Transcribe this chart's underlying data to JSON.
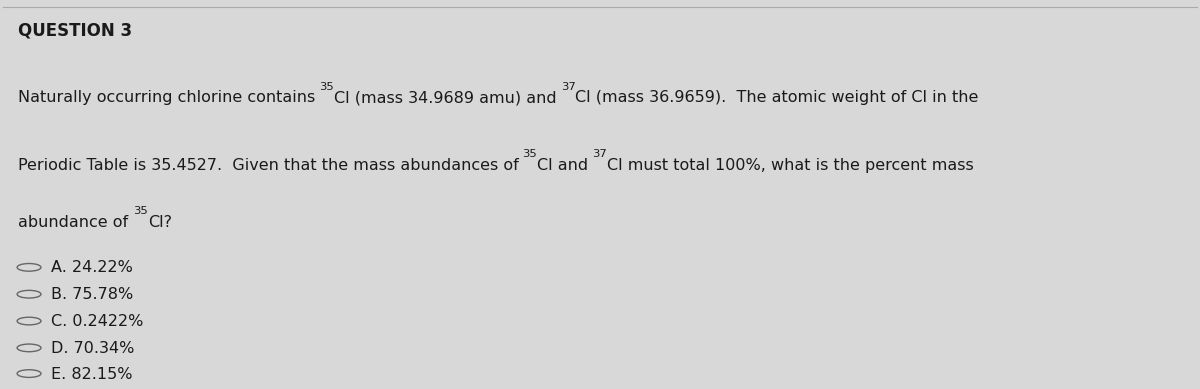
{
  "title": "QUESTION 3",
  "background_color": "#d8d8d8",
  "text_color": "#1a1a1a",
  "fig_width": 12.0,
  "fig_height": 3.89,
  "line1_plain": "Naturally occurring chlorine contains ",
  "line1_sup1": "35",
  "line1_mid1": "Cl (mass 34.9689 amu) and ",
  "line1_sup2": "37",
  "line1_mid2": "Cl (mass 36.9659).  The atomic weight of Cl in the",
  "line2_plain": "Periodic Table is 35.4527.  Given that the mass abundances of ",
  "line2_sup1": "35",
  "line2_mid1": "Cl and ",
  "line2_sup2": "37",
  "line2_mid2": "Cl must total 100%, what is the percent mass",
  "line3_plain": "abundance of ",
  "line3_sup1": "35",
  "line3_mid1": "Cl?",
  "options": [
    "A. 24.22%",
    "B. 75.78%",
    "C. 0.2422%",
    "D. 70.34%",
    "E. 82.15%"
  ]
}
